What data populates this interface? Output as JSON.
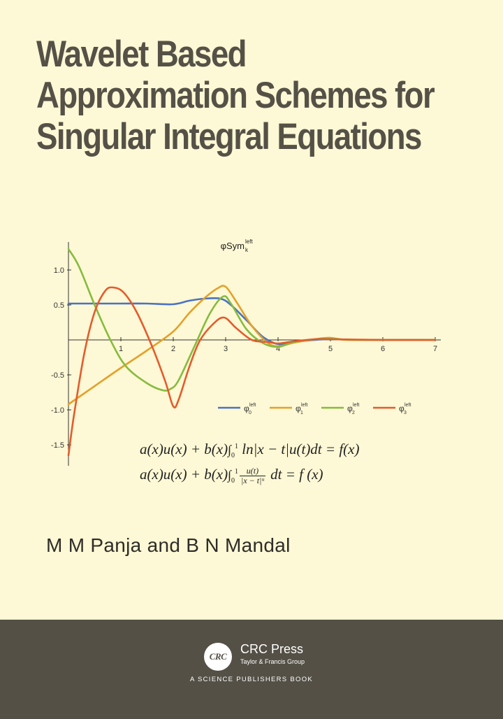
{
  "book": {
    "title_lines": [
      "Wavelet Based",
      "Approximation Schemes for",
      "Singular Integral Equations"
    ],
    "authors": "M M Panja and B N Mandal"
  },
  "equations": {
    "eq1": {
      "prefix": "a(x)u(x) + b(x)",
      "integral": "∫",
      "lower": "0",
      "upper": "1",
      "body": " ln|x − t|u(t)dt = f(x)"
    },
    "eq2": {
      "prefix": "a(x)u(x) + b(x)",
      "integral": "∫",
      "lower": "0",
      "upper": "1",
      "num": "u(t)",
      "den": "|x − t|ᵘ",
      "body": " dt = f (x)"
    }
  },
  "publisher": {
    "logo": "CRC",
    "name": "CRC Press",
    "group": "Taylor & Francis Group",
    "tagline": "A SCIENCE PUBLISHERS BOOK"
  },
  "chart_data": {
    "type": "line",
    "title": "φSym",
    "title_sub": "k",
    "title_sup": "left",
    "xlim": [
      0,
      7
    ],
    "ylim": [
      -1.8,
      1.4
    ],
    "xticks": [
      1,
      2,
      3,
      4,
      5,
      6,
      7
    ],
    "yticks": [
      1.0,
      0.5,
      -0.5,
      -1.0,
      -1.5
    ],
    "ytick_labels": [
      "1.0",
      "0.5",
      "-0.5",
      "-1.0",
      "-1.5"
    ],
    "grid": false,
    "legend_position": "bottom-right",
    "series": [
      {
        "name": "φ",
        "sub": "0",
        "sup": "left",
        "color": "#4a72c4",
        "points": [
          [
            0,
            0.52
          ],
          [
            0.5,
            0.52
          ],
          [
            1,
            0.52
          ],
          [
            1.5,
            0.52
          ],
          [
            2,
            0.51
          ],
          [
            2.3,
            0.56
          ],
          [
            2.6,
            0.59
          ],
          [
            2.9,
            0.59
          ],
          [
            3.1,
            0.5
          ],
          [
            3.4,
            0.28
          ],
          [
            3.7,
            0.05
          ],
          [
            4.0,
            -0.06
          ],
          [
            4.3,
            -0.03
          ],
          [
            4.7,
            0.0
          ],
          [
            5.0,
            0.01
          ],
          [
            5.5,
            0.0
          ],
          [
            6,
            0.0
          ],
          [
            7,
            0.0
          ]
        ]
      },
      {
        "name": "φ",
        "sub": "1",
        "sup": "left",
        "color": "#e3a12a",
        "points": [
          [
            0,
            -0.92
          ],
          [
            0.5,
            -0.66
          ],
          [
            1,
            -0.4
          ],
          [
            1.5,
            -0.15
          ],
          [
            2,
            0.12
          ],
          [
            2.3,
            0.38
          ],
          [
            2.6,
            0.6
          ],
          [
            2.85,
            0.74
          ],
          [
            3.0,
            0.76
          ],
          [
            3.2,
            0.55
          ],
          [
            3.5,
            0.2
          ],
          [
            3.8,
            -0.04
          ],
          [
            4.0,
            -0.09
          ],
          [
            4.3,
            -0.04
          ],
          [
            4.7,
            0.01
          ],
          [
            5.0,
            0.03
          ],
          [
            5.3,
            0.0
          ],
          [
            6,
            0.0
          ],
          [
            7,
            0.0
          ]
        ]
      },
      {
        "name": "φ",
        "sub": "2",
        "sup": "left",
        "color": "#86bb3f",
        "points": [
          [
            0,
            1.3
          ],
          [
            0.2,
            1.05
          ],
          [
            0.5,
            0.5
          ],
          [
            0.8,
            0.0
          ],
          [
            1.1,
            -0.38
          ],
          [
            1.5,
            -0.62
          ],
          [
            1.8,
            -0.72
          ],
          [
            1.95,
            -0.7
          ],
          [
            2.1,
            -0.58
          ],
          [
            2.4,
            -0.1
          ],
          [
            2.7,
            0.38
          ],
          [
            2.95,
            0.62
          ],
          [
            3.1,
            0.52
          ],
          [
            3.4,
            0.15
          ],
          [
            3.7,
            -0.04
          ],
          [
            4.0,
            -0.1
          ],
          [
            4.3,
            -0.03
          ],
          [
            4.7,
            0.01
          ],
          [
            5.0,
            0.02
          ],
          [
            5.5,
            0.0
          ],
          [
            7,
            0.0
          ]
        ]
      },
      {
        "name": "φ",
        "sub": "3",
        "sup": "left",
        "color": "#e45b2c",
        "points": [
          [
            0,
            -1.65
          ],
          [
            0.1,
            -1.1
          ],
          [
            0.3,
            -0.2
          ],
          [
            0.5,
            0.4
          ],
          [
            0.7,
            0.7
          ],
          [
            0.85,
            0.75
          ],
          [
            1.05,
            0.68
          ],
          [
            1.3,
            0.4
          ],
          [
            1.6,
            -0.1
          ],
          [
            1.85,
            -0.6
          ],
          [
            2.0,
            -0.95
          ],
          [
            2.1,
            -0.86
          ],
          [
            2.3,
            -0.4
          ],
          [
            2.5,
            -0.02
          ],
          [
            2.75,
            0.22
          ],
          [
            2.97,
            0.32
          ],
          [
            3.2,
            0.17
          ],
          [
            3.5,
            0.0
          ],
          [
            3.8,
            -0.03
          ],
          [
            4.0,
            -0.05
          ],
          [
            4.3,
            -0.02
          ],
          [
            4.7,
            0.01
          ],
          [
            5.0,
            0.01
          ],
          [
            6,
            0.0
          ],
          [
            7,
            0.0
          ]
        ]
      }
    ]
  }
}
